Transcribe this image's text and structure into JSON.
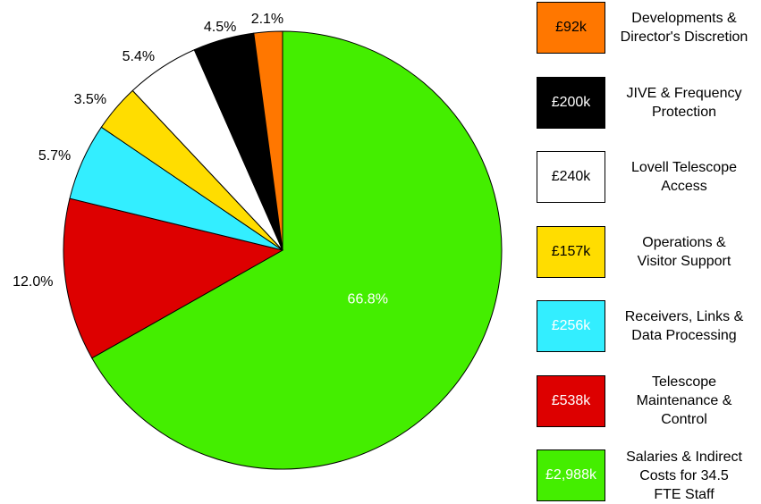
{
  "chart_data": {
    "type": "pie",
    "categories": [
      "Salaries & Indirect\nCosts for 34.5\nFTE Staff",
      "Telescope\nMaintenance &\nControl",
      "Receivers, Links &\nData Processing",
      "Operations &\nVisitor Support",
      "Lovell Telescope\nAccess",
      "JIVE & Frequency\nProtection",
      "Developments &\nDirector's Discretion"
    ],
    "values": [
      66.8,
      12.0,
      5.7,
      3.5,
      5.4,
      4.5,
      2.1
    ],
    "value_labels": [
      "66.8%",
      "12.0%",
      "5.7%",
      "3.5%",
      "5.4%",
      "4.5%",
      "2.1%"
    ],
    "amount_labels": [
      "£2,988k",
      "£538k",
      "£256k",
      "£157k",
      "£240k",
      "£200k",
      "£92k"
    ],
    "colors": [
      "#44ee00",
      "#dd0000",
      "#33eeff",
      "#ffdd00",
      "#ffffff",
      "#000000",
      "#ff7700"
    ],
    "start_angle": 0,
    "direction": "clockwise"
  }
}
